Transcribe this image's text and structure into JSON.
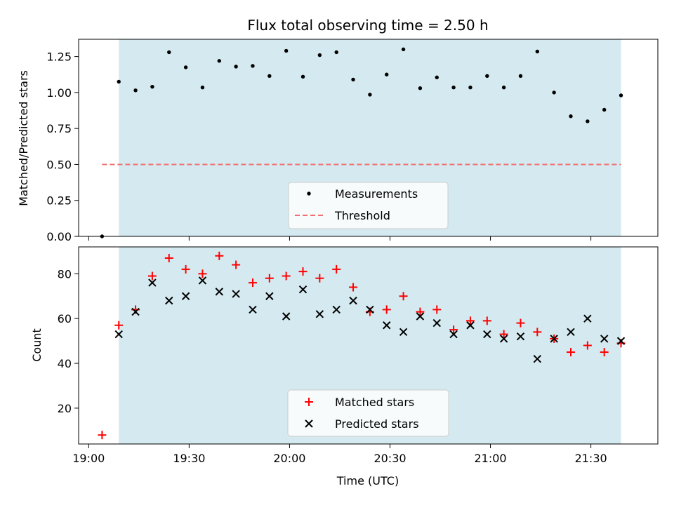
{
  "chart_data": [
    {
      "type": "scatter",
      "title": "Flux total observing time = 2.50 h",
      "xlabel": "",
      "ylabel": "Matched/Predicted stars",
      "ylim": [
        0,
        1.37
      ],
      "yticks": [
        0.0,
        0.25,
        0.5,
        0.75,
        1.0,
        1.25
      ],
      "ytick_labels": [
        "0.00",
        "0.25",
        "0.50",
        "0.75",
        "1.00",
        "1.25"
      ],
      "xlim": [
        "18:57",
        "21:50"
      ],
      "shaded_x": [
        "19:09",
        "21:39"
      ],
      "shade_color": "#d4eaf0",
      "legend_placement": "lower-center",
      "x": [
        "19:04",
        "19:09",
        "19:14",
        "19:19",
        "19:24",
        "19:29",
        "19:34",
        "19:39",
        "19:44",
        "19:49",
        "19:54",
        "19:59",
        "20:04",
        "20:09",
        "20:14",
        "20:19",
        "20:24",
        "20:29",
        "20:34",
        "20:39",
        "20:44",
        "20:49",
        "20:54",
        "20:59",
        "21:04",
        "21:09",
        "21:14",
        "21:19",
        "21:24",
        "21:29",
        "21:34",
        "21:39"
      ],
      "series": [
        {
          "name": "Measurements",
          "marker": "dot",
          "color": "#000000",
          "values": [
            0.0,
            1.075,
            1.015,
            1.04,
            1.28,
            1.175,
            1.035,
            1.22,
            1.18,
            1.185,
            1.115,
            1.29,
            1.11,
            1.26,
            1.28,
            1.09,
            0.985,
            1.125,
            1.3,
            1.03,
            1.105,
            1.035,
            1.035,
            1.115,
            1.035,
            1.115,
            1.285,
            1.0,
            0.835,
            0.8,
            0.88,
            0.98
          ]
        },
        {
          "name": "Threshold",
          "marker": "dashed-line",
          "color": "#f07070",
          "values": [
            0.5,
            0.5
          ]
        }
      ]
    },
    {
      "type": "scatter",
      "title": "",
      "xlabel": "Time (UTC)",
      "ylabel": "Count",
      "ylim": [
        4,
        92
      ],
      "yticks": [
        20,
        40,
        60,
        80
      ],
      "ytick_labels": [
        "20",
        "40",
        "60",
        "80"
      ],
      "xticks": [
        "19:00",
        "19:30",
        "20:00",
        "20:30",
        "21:00",
        "21:30"
      ],
      "legend_placement": "lower-center",
      "x": [
        "19:04",
        "19:09",
        "19:14",
        "19:19",
        "19:24",
        "19:29",
        "19:34",
        "19:39",
        "19:44",
        "19:49",
        "19:54",
        "19:59",
        "20:04",
        "20:09",
        "20:14",
        "20:19",
        "20:24",
        "20:29",
        "20:34",
        "20:39",
        "20:44",
        "20:49",
        "20:54",
        "20:59",
        "21:04",
        "21:09",
        "21:14",
        "21:19",
        "21:24",
        "21:29",
        "21:34",
        "21:39"
      ],
      "series": [
        {
          "name": "Matched stars",
          "marker": "plus",
          "color": "#ff0000",
          "values": [
            8,
            57,
            64,
            79,
            87,
            82,
            80,
            88,
            84,
            76,
            78,
            79,
            81,
            78,
            82,
            74,
            63,
            64,
            70,
            63,
            64,
            55,
            59,
            59,
            53,
            58,
            54,
            51,
            45,
            48,
            45,
            49
          ]
        },
        {
          "name": "Predicted stars",
          "marker": "x",
          "color": "#000000",
          "values": [
            null,
            53,
            63,
            76,
            68,
            70,
            77,
            72,
            71,
            64,
            70,
            61,
            73,
            62,
            64,
            68,
            64,
            57,
            54,
            61,
            58,
            53,
            57,
            53,
            51,
            52,
            42,
            51,
            54,
            60,
            51,
            50
          ]
        }
      ]
    }
  ]
}
